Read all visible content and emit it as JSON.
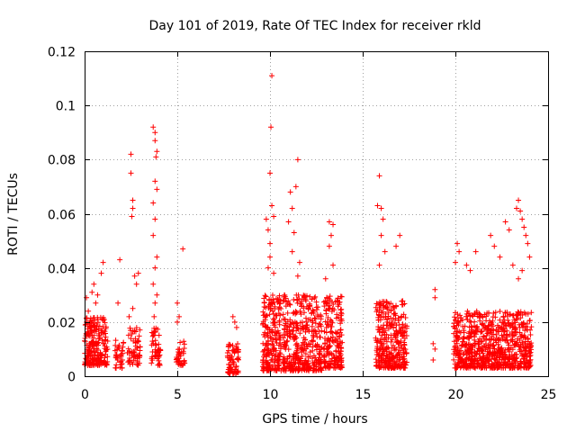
{
  "chart_data": {
    "type": "scatter",
    "title": "Day 101 of 2019, Rate Of TEC Index for receiver rkld",
    "xlabel": "GPS time / hours",
    "ylabel": "ROTI / TECUs",
    "xlim": [
      0,
      25
    ],
    "ylim": [
      0,
      0.12
    ],
    "x_ticks": [
      0,
      5,
      10,
      15,
      20,
      25
    ],
    "y_ticks": [
      0,
      0.02,
      0.04,
      0.06,
      0.08,
      0.1,
      0.12
    ],
    "x_tick_labels": [
      "0",
      "5",
      "10",
      "15",
      "20",
      "25"
    ],
    "y_tick_labels": [
      "0",
      "0.02",
      "0.04",
      "0.06",
      "0.08",
      "0.1",
      "0.12"
    ],
    "grid": true,
    "marker": "plus",
    "series": [
      {
        "name": "ROTI",
        "color": "#ff0000",
        "points": [
          [
            0.1,
            0.029
          ],
          [
            0.2,
            0.024
          ],
          [
            0.3,
            0.018
          ],
          [
            0.4,
            0.031
          ],
          [
            0.5,
            0.034
          ],
          [
            0.6,
            0.027
          ],
          [
            0.7,
            0.03
          ],
          [
            0.9,
            0.038
          ],
          [
            1.0,
            0.042
          ],
          [
            0.3,
            0.012
          ],
          [
            0.5,
            0.009
          ],
          [
            0.8,
            0.015
          ],
          [
            1.9,
            0.043
          ],
          [
            1.8,
            0.027
          ],
          [
            2.5,
            0.082
          ],
          [
            2.5,
            0.075
          ],
          [
            2.6,
            0.065
          ],
          [
            2.6,
            0.062
          ],
          [
            2.55,
            0.059
          ],
          [
            2.7,
            0.037
          ],
          [
            2.8,
            0.034
          ],
          [
            2.9,
            0.038
          ],
          [
            2.6,
            0.025
          ],
          [
            2.4,
            0.022
          ],
          [
            3.7,
            0.092
          ],
          [
            3.8,
            0.09
          ],
          [
            3.8,
            0.087
          ],
          [
            3.9,
            0.083
          ],
          [
            3.85,
            0.081
          ],
          [
            3.8,
            0.072
          ],
          [
            3.7,
            0.064
          ],
          [
            3.9,
            0.069
          ],
          [
            3.8,
            0.058
          ],
          [
            3.7,
            0.052
          ],
          [
            3.9,
            0.044
          ],
          [
            3.8,
            0.04
          ],
          [
            3.7,
            0.034
          ],
          [
            3.9,
            0.03
          ],
          [
            3.8,
            0.027
          ],
          [
            3.75,
            0.022
          ],
          [
            5.0,
            0.027
          ],
          [
            5.1,
            0.022
          ],
          [
            5.0,
            0.02
          ],
          [
            5.3,
            0.047
          ],
          [
            8.0,
            0.022
          ],
          [
            8.1,
            0.02
          ],
          [
            8.2,
            0.018
          ],
          [
            9.8,
            0.058
          ],
          [
            9.9,
            0.054
          ],
          [
            10.0,
            0.049
          ],
          [
            10.1,
            0.111
          ],
          [
            10.05,
            0.092
          ],
          [
            10.0,
            0.075
          ],
          [
            10.1,
            0.063
          ],
          [
            10.2,
            0.059
          ],
          [
            10.0,
            0.044
          ],
          [
            9.9,
            0.04
          ],
          [
            10.2,
            0.038
          ],
          [
            11.0,
            0.057
          ],
          [
            11.2,
            0.062
          ],
          [
            11.1,
            0.068
          ],
          [
            11.4,
            0.07
          ],
          [
            11.5,
            0.08
          ],
          [
            11.3,
            0.053
          ],
          [
            11.2,
            0.046
          ],
          [
            11.6,
            0.042
          ],
          [
            11.5,
            0.037
          ],
          [
            13.2,
            0.057
          ],
          [
            13.4,
            0.056
          ],
          [
            13.3,
            0.052
          ],
          [
            13.2,
            0.048
          ],
          [
            13.4,
            0.041
          ],
          [
            13.0,
            0.036
          ],
          [
            15.9,
            0.074
          ],
          [
            15.8,
            0.063
          ],
          [
            16.0,
            0.062
          ],
          [
            16.1,
            0.058
          ],
          [
            16.0,
            0.052
          ],
          [
            15.9,
            0.041
          ],
          [
            16.2,
            0.046
          ],
          [
            17.0,
            0.052
          ],
          [
            16.8,
            0.048
          ],
          [
            18.9,
            0.032
          ],
          [
            18.9,
            0.029
          ],
          [
            18.8,
            0.012
          ],
          [
            18.9,
            0.01
          ],
          [
            18.8,
            0.006
          ],
          [
            20.1,
            0.049
          ],
          [
            20.2,
            0.046
          ],
          [
            20.0,
            0.042
          ],
          [
            20.6,
            0.041
          ],
          [
            20.8,
            0.039
          ],
          [
            21.1,
            0.046
          ],
          [
            21.9,
            0.052
          ],
          [
            22.1,
            0.048
          ],
          [
            22.4,
            0.044
          ],
          [
            22.7,
            0.057
          ],
          [
            22.9,
            0.054
          ],
          [
            23.1,
            0.041
          ],
          [
            23.3,
            0.062
          ],
          [
            23.4,
            0.065
          ],
          [
            23.5,
            0.061
          ],
          [
            23.6,
            0.058
          ],
          [
            23.7,
            0.055
          ],
          [
            23.8,
            0.052
          ],
          [
            23.9,
            0.049
          ],
          [
            24.0,
            0.044
          ],
          [
            23.6,
            0.039
          ],
          [
            23.4,
            0.036
          ]
        ],
        "dense_clusters": [
          {
            "x_range": [
              0.0,
              1.25
            ],
            "y_range": [
              0.004,
              0.022
            ],
            "count": 220
          },
          {
            "x_range": [
              1.6,
              2.1
            ],
            "y_range": [
              0.003,
              0.014
            ],
            "count": 35
          },
          {
            "x_range": [
              2.3,
              3.0
            ],
            "y_range": [
              0.004,
              0.018
            ],
            "count": 60
          },
          {
            "x_range": [
              3.6,
              4.1
            ],
            "y_range": [
              0.004,
              0.018
            ],
            "count": 50
          },
          {
            "x_range": [
              4.9,
              5.4
            ],
            "y_range": [
              0.004,
              0.014
            ],
            "count": 35
          },
          {
            "x_range": [
              7.7,
              8.3
            ],
            "y_range": [
              0.001,
              0.012
            ],
            "count": 70
          },
          {
            "x_range": [
              9.6,
              10.6
            ],
            "y_range": [
              0.002,
              0.03
            ],
            "count": 220
          },
          {
            "x_range": [
              10.7,
              12.8
            ],
            "y_range": [
              0.002,
              0.03
            ],
            "count": 380
          },
          {
            "x_range": [
              12.9,
              13.9
            ],
            "y_range": [
              0.003,
              0.03
            ],
            "count": 190
          },
          {
            "x_range": [
              15.7,
              17.4
            ],
            "y_range": [
              0.003,
              0.028
            ],
            "count": 330
          },
          {
            "x_range": [
              19.9,
              24.1
            ],
            "y_range": [
              0.003,
              0.024
            ],
            "count": 750
          }
        ]
      }
    ]
  }
}
